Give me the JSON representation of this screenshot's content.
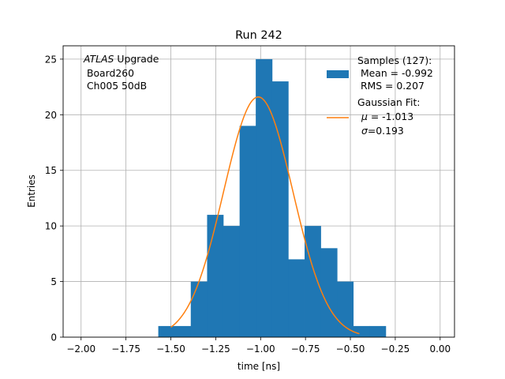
{
  "chart_data": {
    "type": "bar",
    "title": "Run 242",
    "xlabel": "time [ns]",
    "ylabel": "Entries",
    "xlim": [
      -2.1,
      0.08
    ],
    "ylim": [
      0,
      26.2
    ],
    "grid": true,
    "x_ticks": [
      -2.0,
      -1.75,
      -1.5,
      -1.25,
      -1.0,
      -0.75,
      -0.5,
      -0.25,
      0.0
    ],
    "x_tick_labels": [
      "−2.00",
      "−1.75",
      "−1.50",
      "−1.25",
      "−1.00",
      "−0.75",
      "−0.50",
      "−0.25",
      "0.00"
    ],
    "y_ticks": [
      0,
      5,
      10,
      15,
      20,
      25
    ],
    "y_tick_labels": [
      "0",
      "5",
      "10",
      "15",
      "20",
      "25"
    ],
    "bar_color": "#1f77b4",
    "fit_color": "#ff7f0e",
    "bins": [
      {
        "x0": -1.57,
        "x1": -1.479,
        "count": 1
      },
      {
        "x0": -1.479,
        "x1": -1.389,
        "count": 1
      },
      {
        "x0": -1.389,
        "x1": -1.298,
        "count": 5
      },
      {
        "x0": -1.298,
        "x1": -1.208,
        "count": 11
      },
      {
        "x0": -1.208,
        "x1": -1.117,
        "count": 10
      },
      {
        "x0": -1.117,
        "x1": -1.027,
        "count": 19
      },
      {
        "x0": -1.027,
        "x1": -0.936,
        "count": 25
      },
      {
        "x0": -0.936,
        "x1": -0.846,
        "count": 23
      },
      {
        "x0": -0.846,
        "x1": -0.755,
        "count": 7
      },
      {
        "x0": -0.755,
        "x1": -0.665,
        "count": 10
      },
      {
        "x0": -0.665,
        "x1": -0.574,
        "count": 8
      },
      {
        "x0": -0.574,
        "x1": -0.484,
        "count": 5
      },
      {
        "x0": -0.484,
        "x1": -0.393,
        "count": 1
      },
      {
        "x0": -0.393,
        "x1": -0.303,
        "count": 1
      }
    ],
    "fit": {
      "mu": -1.013,
      "sigma": 0.193,
      "amplitude": 21.6,
      "x_range": [
        -1.5,
        -0.45
      ]
    },
    "annotation_lines": [
      "Upgrade",
      " Board260",
      " Ch005 50dB"
    ],
    "annotation_italic": "ATLAS",
    "legend": {
      "placement": "top-right",
      "samples_lines": [
        "Samples (127):",
        " Mean = -0.992",
        " RMS = 0.207"
      ],
      "fit_lines": [
        "Gaussian Fit:",
        " = -1.013",
        "=0.193"
      ],
      "fit_mu_symbol": "μ",
      "fit_sigma_symbol": "σ"
    }
  }
}
